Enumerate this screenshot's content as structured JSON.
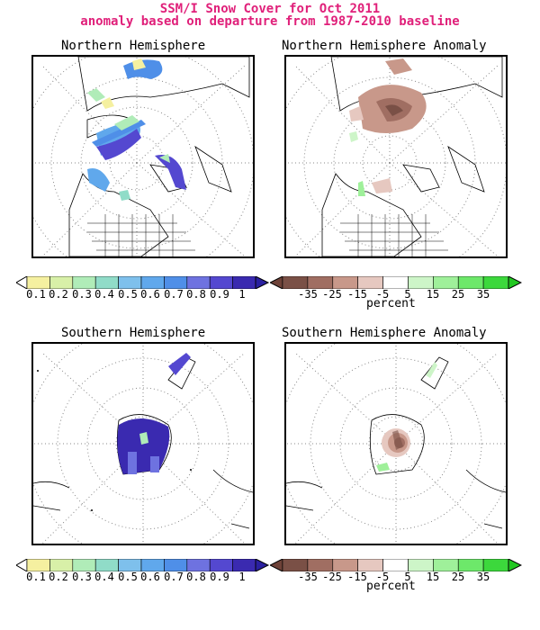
{
  "header": {
    "title_line1": "SSM/I Snow Cover for Oct 2011",
    "title_line2": "anomaly based on departure from 1987-2010 baseline"
  },
  "panels": {
    "nh_cover": "Northern Hemisphere",
    "nh_anomaly": "Northern Hemisphere Anomaly",
    "sh_cover": "Southern Hemisphere",
    "sh_anomaly": "Southern Hemisphere Anomaly"
  },
  "cover_colorbar": {
    "labels": [
      "0.1",
      "0.2",
      "0.3",
      "0.4",
      "0.5",
      "0.6",
      "0.7",
      "0.8",
      "0.9",
      "1"
    ],
    "colors": [
      "#f5f0a0",
      "#d8f0a8",
      "#b0ecb8",
      "#90dcc8",
      "#7ec0ec",
      "#60a8ec",
      "#4f8fe8",
      "#6e72e0",
      "#5448d0",
      "#3a2ab0"
    ]
  },
  "anomaly_colorbar": {
    "labels": [
      "-35",
      "-25",
      "-15",
      "-5",
      "5",
      "15",
      "25",
      "35"
    ],
    "colors": [
      "#7a5046",
      "#a06e62",
      "#c8988a",
      "#e6c8c0",
      "#ffffff",
      "#cdf5c8",
      "#9ff09a",
      "#6de86a",
      "#3cd83c"
    ],
    "unit": "percent"
  }
}
